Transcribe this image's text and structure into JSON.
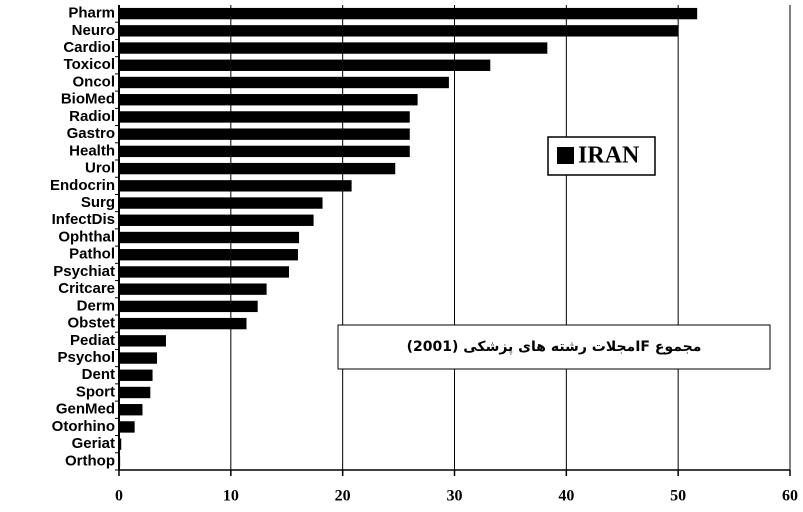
{
  "chart_data": {
    "type": "hbar",
    "annotation": "مجموع IFمجلات رشته های پزشکی (2001)",
    "categories": [
      "Pharm",
      "Neuro",
      "Cardiol",
      "Toxicol",
      "Oncol",
      "BioMed",
      "Radiol",
      "Gastro",
      "Health",
      "Urol",
      "Endocrin",
      "Surg",
      "InfectDis",
      "Ophthal",
      "Pathol",
      "Psychiat",
      "Critcare",
      "Derm",
      "Obstet",
      "Pediat",
      "Psychol",
      "Dent",
      "Sport",
      "GenMed",
      "Otorhino",
      "Geriat",
      "Orthop"
    ],
    "series": [
      {
        "name": "IRAN",
        "color": "#000000",
        "values": [
          51.7,
          50,
          38.3,
          33.2,
          29.5,
          26.7,
          26,
          26,
          26,
          24.7,
          20.8,
          18.2,
          17.4,
          16.1,
          16,
          15.2,
          13.2,
          12.4,
          11.4,
          4.2,
          3.4,
          3.0,
          2.8,
          2.1,
          1.4,
          0.2,
          0.1
        ]
      }
    ],
    "xlim": [
      0,
      60
    ],
    "xticks": [
      0,
      10,
      20,
      30,
      40,
      50,
      60
    ],
    "grid": true
  }
}
